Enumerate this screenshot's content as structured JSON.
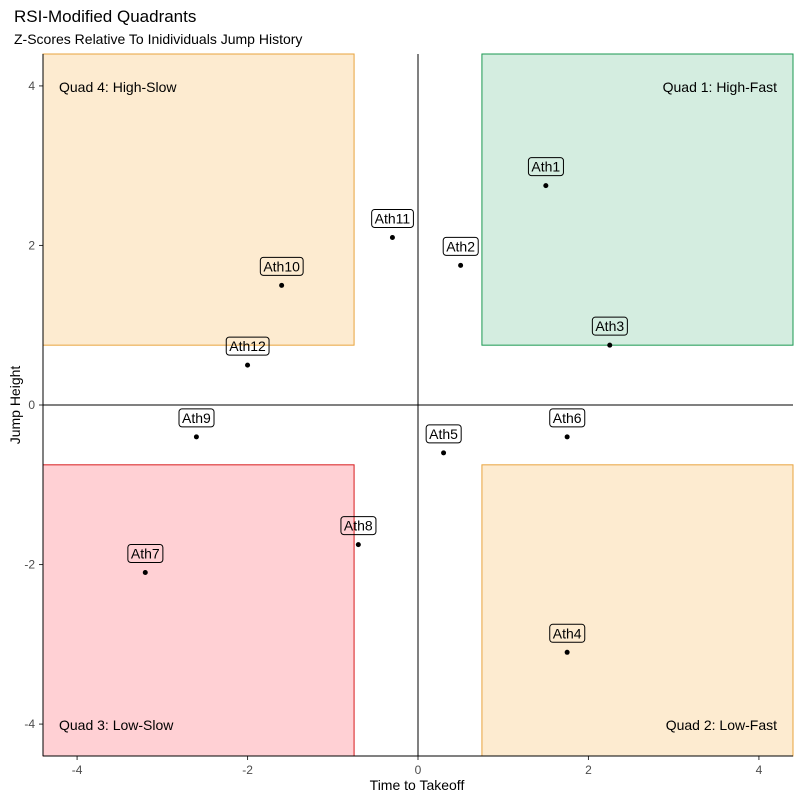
{
  "chart_data": {
    "type": "scatter",
    "title": "RSI-Modified Quadrants",
    "subtitle": "Z-Scores Relative To Inidividuals Jump History",
    "xlabel": "Time to Takeoff",
    "ylabel": "Jump Height",
    "xlim": [
      -4.4,
      4.4
    ],
    "ylim": [
      -4.4,
      4.4
    ],
    "xticks": [
      -4,
      -2,
      0,
      2,
      4
    ],
    "yticks": [
      -4,
      -2,
      0,
      2,
      4
    ],
    "grid": false,
    "reference_lines": {
      "x": 0,
      "y": 0
    },
    "quadrants": [
      {
        "label": "Quad 1: High-Fast",
        "x_range": [
          0.75,
          4.4
        ],
        "y_range": [
          0.75,
          4.4
        ],
        "fill": "#d4ede0",
        "stroke": "#1a9850",
        "label_anchor": "top-right"
      },
      {
        "label": "Quad 2: Low-Fast",
        "x_range": [
          0.75,
          4.4
        ],
        "y_range": [
          -4.4,
          -0.75
        ],
        "fill": "#fdebd0",
        "stroke": "#e8a33d",
        "label_anchor": "bottom-right"
      },
      {
        "label": "Quad 3: Low-Slow",
        "x_range": [
          -4.4,
          -0.75
        ],
        "y_range": [
          -4.4,
          -0.75
        ],
        "fill": "#ffd0d4",
        "stroke": "#d7191c",
        "label_anchor": "bottom-left"
      },
      {
        "label": "Quad 4: High-Slow",
        "x_range": [
          -4.4,
          -0.75
        ],
        "y_range": [
          0.75,
          4.4
        ],
        "fill": "#fdebd0",
        "stroke": "#e8a33d",
        "label_anchor": "top-left"
      }
    ],
    "points": [
      {
        "label": "Ath1",
        "x": 1.5,
        "y": 2.75
      },
      {
        "label": "Ath2",
        "x": 0.5,
        "y": 1.75
      },
      {
        "label": "Ath3",
        "x": 2.25,
        "y": 0.75
      },
      {
        "label": "Ath4",
        "x": 1.75,
        "y": -3.1
      },
      {
        "label": "Ath5",
        "x": 0.3,
        "y": -0.6
      },
      {
        "label": "Ath6",
        "x": 1.75,
        "y": -0.4
      },
      {
        "label": "Ath7",
        "x": -3.2,
        "y": -2.1
      },
      {
        "label": "Ath8",
        "x": -0.7,
        "y": -1.75
      },
      {
        "label": "Ath9",
        "x": -2.6,
        "y": -0.4
      },
      {
        "label": "Ath10",
        "x": -1.6,
        "y": 1.5
      },
      {
        "label": "Ath11",
        "x": -0.3,
        "y": 2.1
      },
      {
        "label": "Ath12",
        "x": -2.0,
        "y": 0.5
      }
    ]
  }
}
